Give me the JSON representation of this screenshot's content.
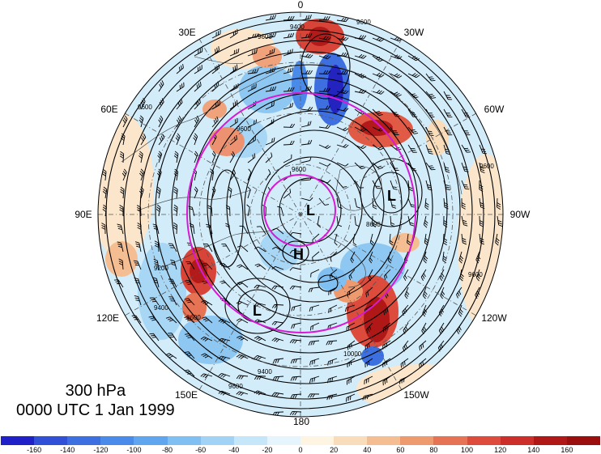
{
  "lon_labels": [
    "0",
    "30W",
    "60W",
    "90W",
    "120W",
    "150W",
    "180",
    "150E",
    "120E",
    "90E",
    "60E",
    "30E"
  ],
  "info": {
    "level": "300 hPa",
    "time": "0000 UTC 1 Jan 1999"
  },
  "colorbar": {
    "labels": [
      "-160",
      "-140",
      "-120",
      "-100",
      "-80",
      "-60",
      "-40",
      "-20",
      "0",
      "20",
      "40",
      "60",
      "80",
      "100",
      "120",
      "140",
      "160"
    ],
    "colors": [
      "#2020c8",
      "#3050d8",
      "#3c6fe0",
      "#4a8ae8",
      "#60a6ee",
      "#7fbff2",
      "#a1d3f6",
      "#c6e6fa",
      "#e6f5fd",
      "#fdf4e2",
      "#f9ddbb",
      "#f4be92",
      "#ee9a6e",
      "#e67353",
      "#dc4b3c",
      "#cc2f2a",
      "#b01818",
      "#9a0e0e"
    ]
  },
  "contour_labels": [
    "9400",
    "9600",
    "9600",
    "9600",
    "9600",
    "8600",
    "9400",
    "9600",
    "9200",
    "9400",
    "9600",
    "9600",
    "10000",
    "9600",
    "9600"
  ],
  "pressure_centers": [
    "L",
    "L",
    "H",
    "L"
  ]
}
